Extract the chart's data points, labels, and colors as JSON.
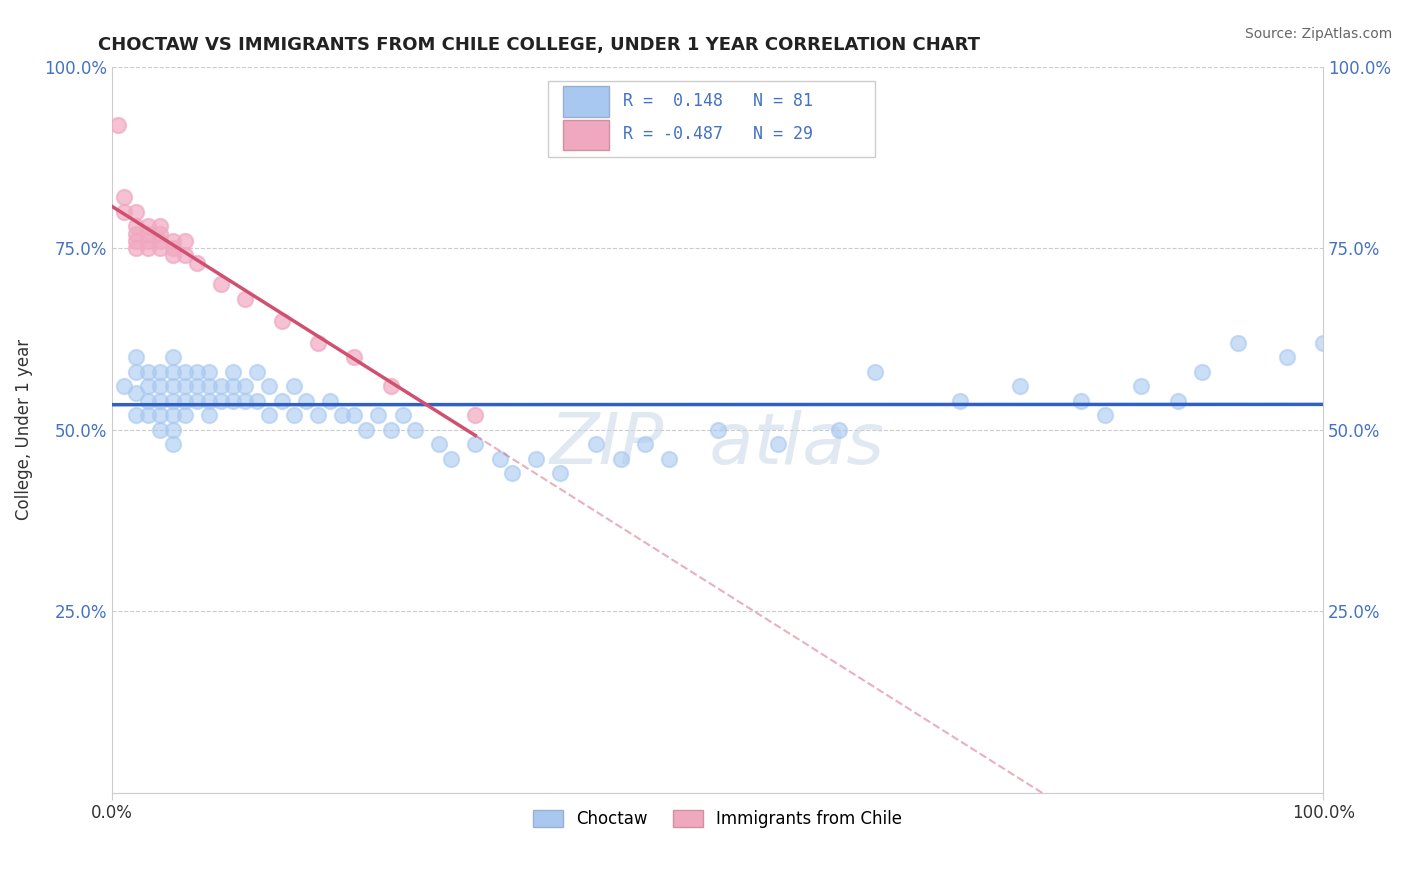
{
  "title": "CHOCTAW VS IMMIGRANTS FROM CHILE COLLEGE, UNDER 1 YEAR CORRELATION CHART",
  "source": "Source: ZipAtlas.com",
  "ylabel": "College, Under 1 year",
  "xmin": 0.0,
  "xmax": 1.0,
  "ymin": 0.0,
  "ymax": 1.0,
  "legend_labels": [
    "Choctaw",
    "Immigrants from Chile"
  ],
  "R_choctaw": 0.148,
  "N_choctaw": 81,
  "R_chile": -0.487,
  "N_chile": 29,
  "choctaw_color": "#a8c8f0",
  "chile_color": "#f0a8c0",
  "choctaw_line_color": "#3060c0",
  "chile_line_color": "#d05070",
  "background_color": "#ffffff",
  "choctaw_scatter_x": [
    0.01,
    0.02,
    0.02,
    0.02,
    0.02,
    0.03,
    0.03,
    0.03,
    0.03,
    0.04,
    0.04,
    0.04,
    0.04,
    0.04,
    0.05,
    0.05,
    0.05,
    0.05,
    0.05,
    0.05,
    0.05,
    0.06,
    0.06,
    0.06,
    0.06,
    0.07,
    0.07,
    0.07,
    0.08,
    0.08,
    0.08,
    0.08,
    0.09,
    0.09,
    0.1,
    0.1,
    0.1,
    0.11,
    0.11,
    0.12,
    0.12,
    0.13,
    0.13,
    0.14,
    0.15,
    0.15,
    0.16,
    0.17,
    0.18,
    0.19,
    0.2,
    0.21,
    0.22,
    0.23,
    0.24,
    0.25,
    0.27,
    0.28,
    0.3,
    0.32,
    0.33,
    0.35,
    0.37,
    0.4,
    0.42,
    0.44,
    0.46,
    0.5,
    0.55,
    0.6,
    0.63,
    0.7,
    0.75,
    0.8,
    0.82,
    0.85,
    0.88,
    0.9,
    0.93,
    0.97,
    1.0
  ],
  "choctaw_scatter_y": [
    0.56,
    0.6,
    0.58,
    0.55,
    0.52,
    0.58,
    0.56,
    0.54,
    0.52,
    0.58,
    0.56,
    0.54,
    0.52,
    0.5,
    0.6,
    0.58,
    0.56,
    0.54,
    0.52,
    0.5,
    0.48,
    0.58,
    0.56,
    0.54,
    0.52,
    0.58,
    0.56,
    0.54,
    0.58,
    0.56,
    0.54,
    0.52,
    0.56,
    0.54,
    0.58,
    0.56,
    0.54,
    0.56,
    0.54,
    0.58,
    0.54,
    0.56,
    0.52,
    0.54,
    0.56,
    0.52,
    0.54,
    0.52,
    0.54,
    0.52,
    0.52,
    0.5,
    0.52,
    0.5,
    0.52,
    0.5,
    0.48,
    0.46,
    0.48,
    0.46,
    0.44,
    0.46,
    0.44,
    0.48,
    0.46,
    0.48,
    0.46,
    0.5,
    0.48,
    0.5,
    0.58,
    0.54,
    0.56,
    0.54,
    0.52,
    0.56,
    0.54,
    0.58,
    0.62,
    0.6,
    0.62
  ],
  "chile_scatter_x": [
    0.005,
    0.01,
    0.01,
    0.02,
    0.02,
    0.02,
    0.02,
    0.02,
    0.03,
    0.03,
    0.03,
    0.03,
    0.04,
    0.04,
    0.04,
    0.04,
    0.05,
    0.05,
    0.05,
    0.06,
    0.06,
    0.07,
    0.09,
    0.11,
    0.14,
    0.17,
    0.2,
    0.23,
    0.3
  ],
  "chile_scatter_y": [
    0.92,
    0.82,
    0.8,
    0.8,
    0.78,
    0.77,
    0.76,
    0.75,
    0.78,
    0.77,
    0.76,
    0.75,
    0.78,
    0.77,
    0.76,
    0.75,
    0.76,
    0.75,
    0.74,
    0.76,
    0.74,
    0.73,
    0.7,
    0.68,
    0.65,
    0.62,
    0.6,
    0.56,
    0.52
  ],
  "chile_line_x_solid_end": 0.3,
  "y_ticks": [
    0.0,
    0.25,
    0.5,
    0.75,
    1.0
  ],
  "y_tick_labels": [
    "",
    "25.0%",
    "50.0%",
    "75.0%",
    "100.0%"
  ]
}
